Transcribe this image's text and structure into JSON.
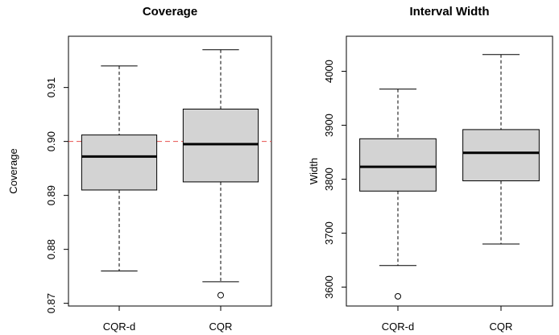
{
  "chart_data": [
    {
      "type": "box",
      "title": "Coverage",
      "ylabel": "Coverage",
      "xlabel": "",
      "categories": [
        "CQR-d",
        "CQR"
      ],
      "ylim": [
        0.8695,
        0.9195
      ],
      "yticks": [
        0.87,
        0.88,
        0.89,
        0.9,
        0.91
      ],
      "ytick_labels": [
        "0.87",
        "0.88",
        "0.89",
        "0.90",
        "0.91"
      ],
      "boxes": [
        {
          "name": "CQR-d",
          "min": 0.876,
          "q1": 0.891,
          "median": 0.8972,
          "q3": 0.9012,
          "max": 0.914,
          "outliers": []
        },
        {
          "name": "CQR",
          "min": 0.874,
          "q1": 0.8925,
          "median": 0.8995,
          "q3": 0.906,
          "max": 0.917,
          "outliers": [
            0.8715
          ]
        }
      ],
      "reference_line": {
        "y": 0.9,
        "color": "#e8504f",
        "style": "dashed"
      },
      "box_fill": "#d3d3d3",
      "grid": false
    },
    {
      "type": "box",
      "title": "Interval Width",
      "ylabel": "Width",
      "xlabel": "",
      "categories": [
        "CQR-d",
        "CQR"
      ],
      "ylim": [
        3565,
        4065
      ],
      "yticks": [
        3600,
        3700,
        3800,
        3900,
        4000
      ],
      "ytick_labels": [
        "3600",
        "3700",
        "3800",
        "3900",
        "4000"
      ],
      "boxes": [
        {
          "name": "CQR-d",
          "min": 3640,
          "q1": 3778,
          "median": 3823,
          "q3": 3875,
          "max": 3967,
          "outliers": [
            3583
          ]
        },
        {
          "name": "CQR",
          "min": 3680,
          "q1": 3797,
          "median": 3849,
          "q3": 3892,
          "max": 4031,
          "outliers": []
        }
      ],
      "box_fill": "#d3d3d3",
      "grid": false
    }
  ]
}
